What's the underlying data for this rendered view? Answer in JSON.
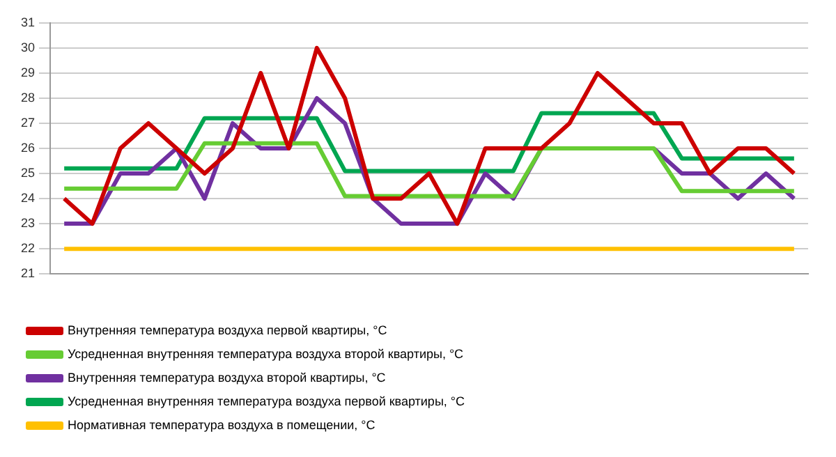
{
  "chart_data": {
    "type": "line",
    "categories": [
      null,
      null,
      null,
      null,
      null,
      null,
      null,
      null,
      null,
      null,
      null,
      null,
      null,
      null,
      null,
      null,
      null,
      null,
      null,
      null,
      null,
      null,
      null,
      null,
      null,
      null,
      null
    ],
    "series": [
      {
        "name": "Внутренняя температура воздуха первой квартиры, °С",
        "color": "#cc0000",
        "values": [
          24,
          23,
          26,
          27,
          26,
          25,
          26,
          29,
          26,
          30,
          28,
          24,
          24,
          25,
          23,
          26,
          26,
          26,
          27,
          29,
          28,
          27,
          27,
          25,
          26,
          26,
          25
        ]
      },
      {
        "name": "Усредненная внутренняя температура воздуха второй квартиры, °С",
        "color": "#66cc33",
        "values": [
          24.4,
          24.4,
          24.4,
          24.4,
          24.4,
          26.2,
          26.2,
          26.2,
          26.2,
          26.2,
          24.1,
          24.1,
          24.1,
          24.1,
          24.1,
          24.1,
          24.1,
          26,
          26,
          26,
          26,
          26,
          24.3,
          24.3,
          24.3,
          24.3,
          24.3
        ]
      },
      {
        "name": "Внутренняя температура воздуха второй квартиры, °С",
        "color": "#7030a0",
        "values": [
          23,
          23,
          25,
          25,
          26,
          24,
          27,
          26,
          26,
          28,
          27,
          24,
          23,
          23,
          23,
          25,
          24,
          26,
          null,
          null,
          null,
          26,
          25,
          25,
          24,
          25,
          24
        ]
      },
      {
        "name": "Усредненная внутренняя температура воздуха первой квартиры, °С",
        "color": "#00a651",
        "values": [
          25.2,
          25.2,
          25.2,
          25.2,
          25.2,
          27.2,
          27.2,
          27.2,
          27.2,
          27.2,
          25.1,
          25.1,
          25.1,
          25.1,
          25.1,
          25.1,
          25.1,
          27.4,
          27.4,
          27.4,
          27.4,
          27.4,
          25.6,
          25.6,
          25.6,
          25.6,
          25.6
        ]
      },
      {
        "name": "Нормативная температура воздуха в помещении, °С",
        "color": "#ffc000",
        "values": [
          22,
          22,
          22,
          22,
          22,
          22,
          22,
          22,
          22,
          22,
          22,
          22,
          22,
          22,
          22,
          22,
          22,
          22,
          22,
          22,
          22,
          22,
          22,
          22,
          22,
          22,
          22
        ]
      }
    ],
    "ylim": [
      21,
      31
    ],
    "yticks": [
      21,
      22,
      23,
      24,
      25,
      26,
      27,
      28,
      29,
      30,
      31
    ],
    "grid": "y",
    "legend": "bottom",
    "marker": "none",
    "line_style": "solid"
  }
}
